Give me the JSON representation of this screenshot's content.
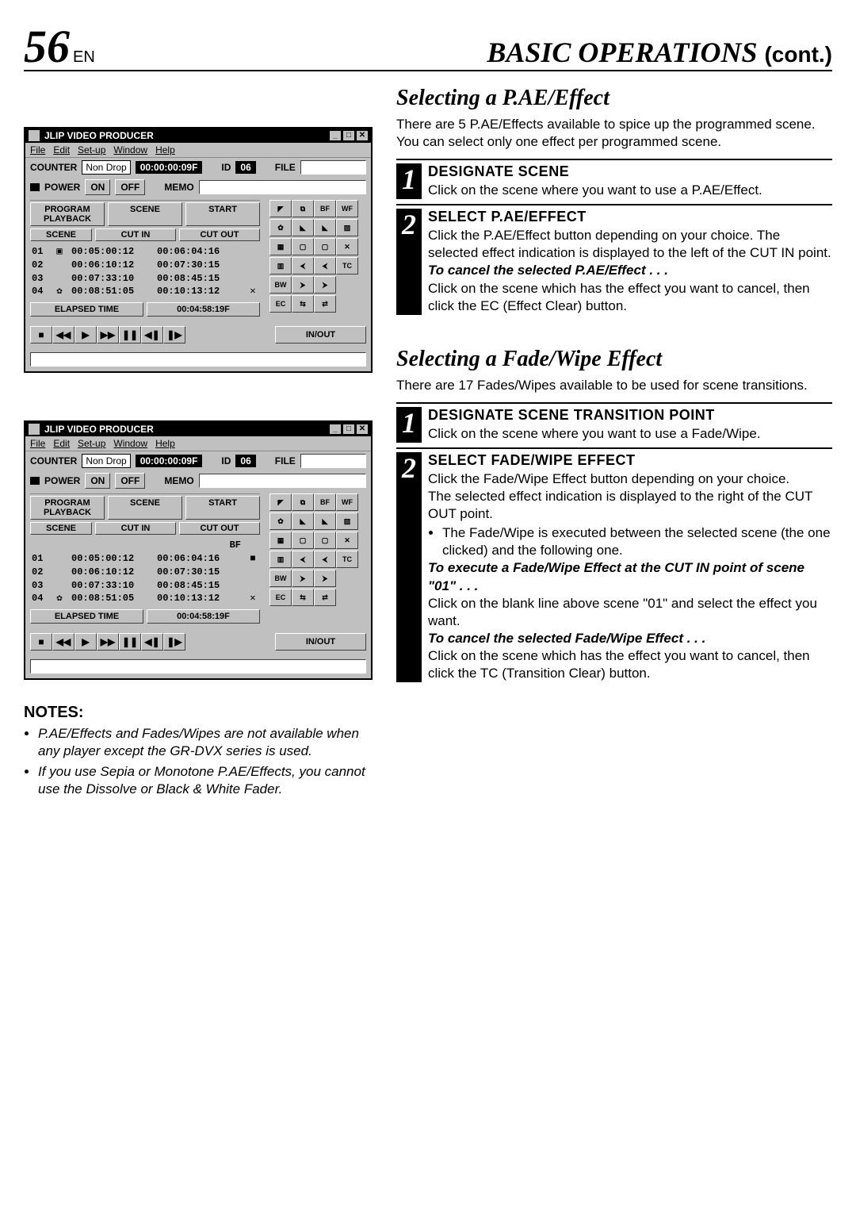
{
  "page": {
    "num": "56",
    "lang": "EN",
    "title": "BASIC OPERATIONS",
    "cont": "(cont.)"
  },
  "app": {
    "title": "JLIP VIDEO PRODUCER",
    "menus": [
      "File",
      "Edit",
      "Set-up",
      "Window",
      "Help"
    ],
    "counter_lbl": "COUNTER",
    "counter_mode": "Non Drop",
    "counter_val": "00:00:00:09F",
    "id_lbl": "ID",
    "id_val": "06",
    "file_lbl": "FILE",
    "power_lbl": "POWER",
    "on": "ON",
    "off": "OFF",
    "memo": "MEMO",
    "prog": "PROGRAM PLAYBACK",
    "scene": "SCENE",
    "start": "START",
    "col_scene": "SCENE",
    "col_cutin": "CUT IN",
    "col_cutout": "CUT OUT",
    "elapsed": "ELAPSED TIME",
    "elapsed_val": "00:04:58:19F",
    "inout": "IN/OUT",
    "rows1": [
      {
        "n": "01",
        "ic": "▣",
        "in": "00:05:00:12",
        "out": "00:06:04:16",
        "tc": ""
      },
      {
        "n": "02",
        "ic": "",
        "in": "00:06:10:12",
        "out": "00:07:30:15",
        "tc": ""
      },
      {
        "n": "03",
        "ic": "",
        "in": "00:07:33:10",
        "out": "00:08:45:15",
        "tc": ""
      },
      {
        "n": "04",
        "ic": "✿",
        "in": "00:08:51:05",
        "out": "00:10:13:12",
        "tc": "✕"
      }
    ],
    "rows2_extra": "BF",
    "rows2": [
      {
        "n": "01",
        "ic": "",
        "in": "00:05:00:12",
        "out": "00:06:04:16",
        "tc": "■"
      },
      {
        "n": "02",
        "ic": "",
        "in": "00:06:10:12",
        "out": "00:07:30:15",
        "tc": ""
      },
      {
        "n": "03",
        "ic": "",
        "in": "00:07:33:10",
        "out": "00:08:45:15",
        "tc": ""
      },
      {
        "n": "04",
        "ic": "✿",
        "in": "00:08:51:05",
        "out": "00:10:13:12",
        "tc": "✕"
      }
    ],
    "transport": [
      "■",
      "◀◀",
      "▶",
      "▶▶",
      "❚❚",
      "◀❚",
      "❚▶"
    ],
    "effects": [
      "◤",
      "⧉",
      "BF",
      "WF",
      "✿",
      "◣",
      "◣",
      "▨",
      "▦",
      "▢",
      "▢",
      "✕",
      "▥",
      "⮜",
      "⮜",
      "TC",
      "BW",
      "⮞",
      "⮞",
      "",
      "EC",
      "⇆",
      "⇄",
      ""
    ]
  },
  "sec1": {
    "title": "Selecting a P.AE/Effect",
    "intro": "There are 5 P.AE/Effects available to spice up the programmed scene. You can select only one effect per programmed scene.",
    "steps": [
      {
        "n": "1",
        "h": "DESIGNATE SCENE",
        "b": "Click on the scene where you want to use a P.AE/Effect."
      },
      {
        "n": "2",
        "h": "SELECT P.AE/EFFECT",
        "b": "Click the P.AE/Effect button depending on your choice. The selected effect indication is displayed to the left of the CUT IN point.",
        "em": "To cancel the selected P.AE/Effect . . .",
        "b2": "Click on the scene which has the effect you want to cancel, then click the EC (Effect Clear) button."
      }
    ]
  },
  "sec2": {
    "title": "Selecting a Fade/Wipe Effect",
    "intro": "There are 17 Fades/Wipes available to be used for scene transitions.",
    "steps": [
      {
        "n": "1",
        "h": "DESIGNATE SCENE TRANSITION POINT",
        "b": "Click on the scene where you want to use a Fade/Wipe."
      },
      {
        "n": "2",
        "h": "SELECT FADE/WIPE EFFECT",
        "b": "Click the Fade/Wipe Effect button depending on your choice.\nThe selected effect indication is displayed to the right of the CUT OUT point.",
        "bullet": "The Fade/Wipe is executed between the selected scene (the one clicked) and the following one.",
        "em1": "To execute a Fade/Wipe Effect at the CUT IN point of scene \"01\" . . .",
        "b2": "Click on the blank line above scene \"01\" and select the effect you want.",
        "em2": "To cancel the selected Fade/Wipe Effect . . .",
        "b3": "Click on the scene which has the effect you want to cancel, then click the TC (Transition Clear) button."
      }
    ]
  },
  "notes": {
    "title": "NOTES:",
    "items": [
      "P.AE/Effects and Fades/Wipes are not available when any player except the GR-DVX series is used.",
      "If you use Sepia or Monotone P.AE/Effects, you cannot use the Dissolve or Black & White Fader."
    ]
  }
}
